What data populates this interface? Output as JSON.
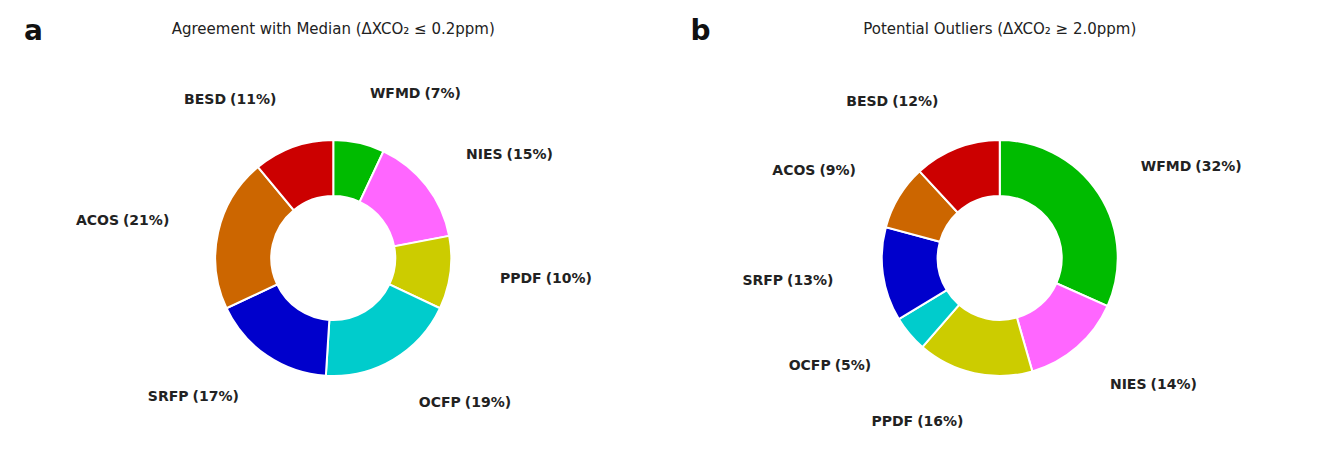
{
  "chart_data": [
    {
      "type": "donut",
      "title": "Agreement with Median (ΔXCO₂ ≤ 0.2ppm)",
      "annotations": [
        "a"
      ],
      "categories": [
        "WFMD",
        "NIES",
        "PPDF",
        "OCFP",
        "SRFP",
        "ACOS",
        "BESD"
      ],
      "values": [
        7,
        15,
        10,
        19,
        17,
        21,
        11
      ],
      "value_labels": [
        "(7%)",
        "(15%)",
        "(10%)",
        "(19%)",
        "(17%)",
        "(21%)",
        "(11%)"
      ],
      "colors": [
        "#00BB00",
        "#FF66FF",
        "#CCCC00",
        "#00CCCC",
        "#0000CC",
        "#CC6600",
        "#CC0000"
      ],
      "data_labels": true
    },
    {
      "type": "donut",
      "title": "Potential Outliers (ΔXCO₂ ≥ 2.0ppm)",
      "annotations": [
        "b"
      ],
      "categories": [
        "WFMD",
        "NIES",
        "PPDF",
        "OCFP",
        "SRFP",
        "ACOS",
        "BESD"
      ],
      "values": [
        32,
        14,
        16,
        5,
        13,
        9,
        12
      ],
      "value_labels": [
        "(32%)",
        "(14%)",
        "(16%)",
        "(5%)",
        "(13%)",
        "(9%)",
        "(12%)"
      ],
      "colors": [
        "#00BB00",
        "#FF66FF",
        "#CCCC00",
        "#00CCCC",
        "#0000CC",
        "#CC6600",
        "#CC0000"
      ],
      "data_labels": true
    }
  ]
}
